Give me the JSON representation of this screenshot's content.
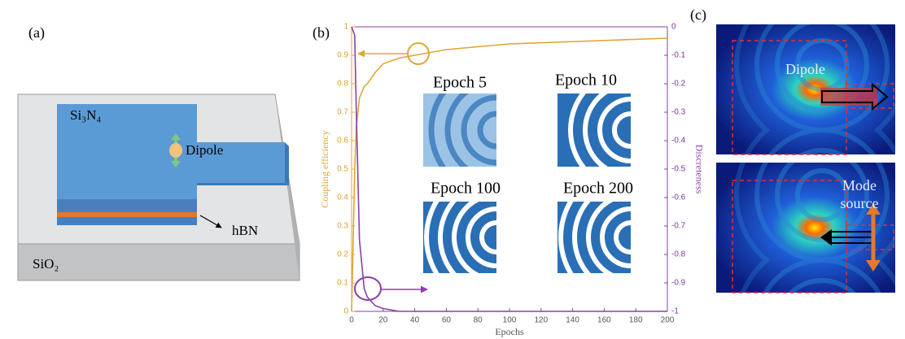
{
  "panel_labels": [
    "(a)",
    "(b)",
    "(c)"
  ],
  "panel_a": {
    "core": "Si₃N₄",
    "emitter": "Dipole",
    "layer": "hBN",
    "substrate": "SiO₂"
  },
  "panel_c": {
    "top": "Dipole",
    "bottom": [
      "Mode",
      "source"
    ]
  },
  "chart_data": {
    "type": "line",
    "x_label": "Epochs",
    "y_label": "Coupling efficiency",
    "y2_label": "Discreteness",
    "annotations": [
      "Epoch 5",
      "Epoch 10",
      "Epoch 100",
      "Epoch 200"
    ],
    "x": [
      0,
      2,
      3,
      5,
      8,
      10,
      15,
      20,
      30,
      40,
      60,
      80,
      100,
      150,
      200
    ],
    "series": [
      {
        "name": "Coupling efficiency",
        "color": "#e0a534",
        "values": [
          0,
          0.5,
          0.65,
          0.75,
          0.79,
          0.8,
          0.84,
          0.87,
          0.89,
          0.9,
          0.92,
          0.93,
          0.94,
          0.95,
          0.96
        ]
      },
      {
        "name": "Discreteness",
        "color": "#8a3fa8",
        "axis": "y2",
        "values": [
          0,
          -0.03,
          -0.3,
          -0.75,
          -0.92,
          -0.95,
          -0.98,
          -0.99,
          -1,
          -1,
          -1,
          -1,
          -1,
          -1,
          -1
        ]
      }
    ],
    "xlim": [
      0,
      200
    ],
    "xticks": [
      0,
      20,
      40,
      60,
      80,
      100,
      120,
      140,
      160,
      180,
      200
    ],
    "ylim": [
      0,
      1
    ],
    "yticks": [
      0,
      0.1,
      0.2,
      0.3,
      0.4,
      0.5,
      0.6,
      0.7,
      0.8,
      0.9,
      1
    ],
    "y2lim": [
      -1,
      0
    ],
    "y2ticks": [
      0,
      -0.1,
      -0.2,
      -0.3,
      -0.4,
      -0.5,
      -0.6,
      -0.7,
      -0.8,
      -0.9,
      -1
    ]
  }
}
